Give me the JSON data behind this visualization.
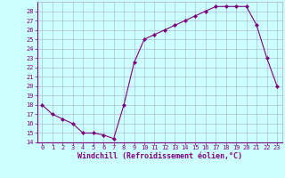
{
  "x": [
    0,
    1,
    2,
    3,
    4,
    5,
    6,
    7,
    8,
    9,
    10,
    11,
    12,
    13,
    14,
    15,
    16,
    17,
    18,
    19,
    20,
    21,
    22,
    23
  ],
  "y": [
    18,
    17,
    16.5,
    16,
    15,
    15,
    14.8,
    14.4,
    18,
    22.5,
    25,
    25.5,
    26,
    26.5,
    27,
    27.5,
    28,
    28.5,
    28.5,
    28.5,
    28.5,
    26.5,
    23,
    20
  ],
  "line_color": "#800080",
  "marker": "D",
  "marker_size": 2,
  "bg_color": "#ccffff",
  "grid_color": "#aaaacc",
  "xlabel": "Windchill (Refroidissement éolien,°C)",
  "xlabel_color": "#800080",
  "ylim": [
    14,
    29
  ],
  "xlim": [
    -0.5,
    23.5
  ],
  "yticks": [
    14,
    15,
    16,
    17,
    18,
    19,
    20,
    21,
    22,
    23,
    24,
    25,
    26,
    27,
    28
  ],
  "xticks": [
    0,
    1,
    2,
    3,
    4,
    5,
    6,
    7,
    8,
    9,
    10,
    11,
    12,
    13,
    14,
    15,
    16,
    17,
    18,
    19,
    20,
    21,
    22,
    23
  ],
  "tick_color": "#800080",
  "tick_label_fontsize": 5,
  "xlabel_fontsize": 6
}
